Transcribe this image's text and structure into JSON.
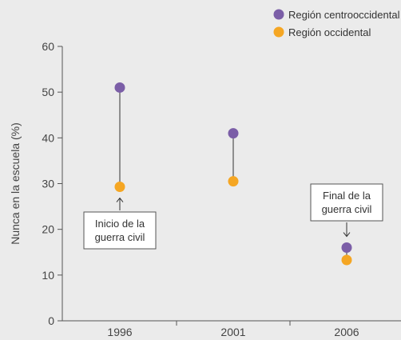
{
  "chart_data": {
    "type": "scatter",
    "ylabel": "Nunca en la escuela (%)",
    "xlabel": "",
    "ylim": [
      0,
      60
    ],
    "yticks": [
      0,
      10,
      20,
      30,
      40,
      50,
      60
    ],
    "categories": [
      "1996",
      "2001",
      "2006"
    ],
    "series": [
      {
        "name": "Región centrooccidental",
        "color": "#7b5ea7",
        "values": [
          51,
          41,
          16
        ]
      },
      {
        "name": "Región occidental",
        "color": "#f5a623",
        "values": [
          29.3,
          30.5,
          13.3
        ]
      }
    ],
    "annotations": [
      {
        "category": "1996",
        "lines": [
          "Inicio de la",
          "guerra civil"
        ],
        "position": "below"
      },
      {
        "category": "2006",
        "lines": [
          "Final de la",
          "guerra civil"
        ],
        "position": "above"
      }
    ],
    "legend_position": "top-right",
    "grid": false
  }
}
